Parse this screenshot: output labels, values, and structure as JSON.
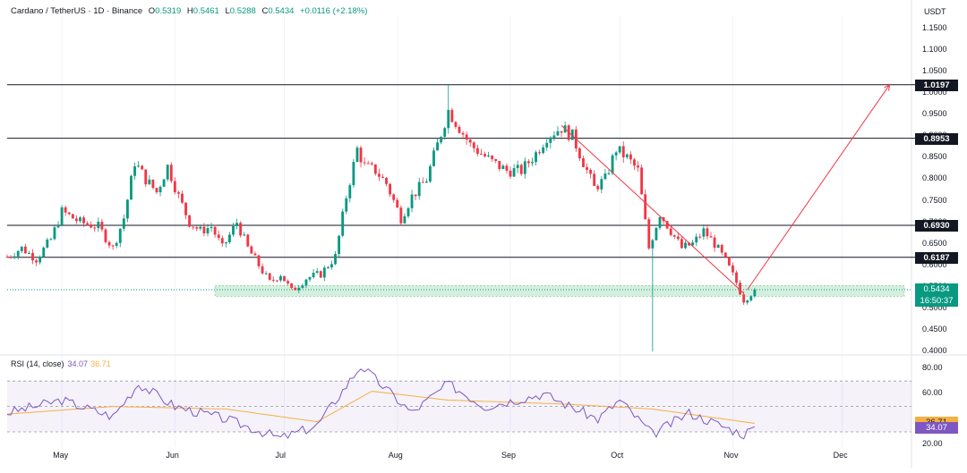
{
  "header": {
    "symbol": "Cardano / TetherUS · 1D · Binance",
    "o_label": "O",
    "o": "0.5319",
    "h_label": "H",
    "h": "0.5461",
    "l_label": "L",
    "l": "0.5288",
    "c_label": "C",
    "c": "0.5434",
    "change": "+0.0116 (+2.18%)"
  },
  "price_axis": {
    "unit": "USDT",
    "ticks": [
      "1.1500",
      "1.1000",
      "1.0500",
      "1.0000",
      "0.9500",
      "0.9000",
      "0.8500",
      "0.8000",
      "0.7500",
      "0.7000",
      "0.6500",
      "0.6000",
      "0.5500",
      "0.5000",
      "0.4500",
      "0.4000"
    ]
  },
  "rsi_axis": {
    "ticks": [
      "80.00",
      "60.00",
      "20.00"
    ]
  },
  "level_labels": [
    "1.0197",
    "0.8953",
    "0.6930",
    "0.6187"
  ],
  "price_tag": {
    "value": "0.5434",
    "countdown": "16:50:37"
  },
  "rsi_tags": {
    "ma": "36.71",
    "rsi": "34.07"
  },
  "rsi_header": {
    "label": "RSI (14, close)",
    "rsi": "34.07",
    "ma": "36.71"
  },
  "colors": {
    "up": "#089981",
    "down": "#f23645",
    "rsi": "#7e57c2",
    "rsi_ma": "#f5b041",
    "zone": "#b9e4c9",
    "arrow": "#f23645"
  },
  "chart_data": [
    {
      "type": "candlestick",
      "title": "Cardano / TetherUS · 1D · Binance",
      "x_ticks": [
        "May",
        "Jun",
        "Jul",
        "Aug",
        "Sep",
        "Oct",
        "Nov",
        "Dec"
      ],
      "ylim": [
        0.4,
        1.16
      ],
      "horizontal_levels": [
        1.0197,
        0.8953,
        0.693,
        0.6187
      ],
      "support_zone": [
        0.528,
        0.553
      ],
      "last_close": 0.5434,
      "trend_line": [
        {
          "x": "2024-09-15",
          "y": 0.925
        },
        {
          "x": "2024-11-04",
          "y": 0.535
        }
      ],
      "projection_arrow": [
        {
          "x": "2024-11-05",
          "y": 0.5434
        },
        {
          "x": "2024-12-14",
          "y": 1.0197
        }
      ],
      "close_waypoints": [
        {
          "x": "2024-04-16",
          "y": 0.62
        },
        {
          "x": "2024-04-20",
          "y": 0.64
        },
        {
          "x": "2024-04-24",
          "y": 0.615
        },
        {
          "x": "2024-04-28",
          "y": 0.66
        },
        {
          "x": "2024-05-01",
          "y": 0.725
        },
        {
          "x": "2024-05-06",
          "y": 0.7
        },
        {
          "x": "2024-05-11",
          "y": 0.69
        },
        {
          "x": "2024-05-15",
          "y": 0.64
        },
        {
          "x": "2024-05-18",
          "y": 0.71
        },
        {
          "x": "2024-05-21",
          "y": 0.84
        },
        {
          "x": "2024-05-24",
          "y": 0.8
        },
        {
          "x": "2024-05-27",
          "y": 0.77
        },
        {
          "x": "2024-05-30",
          "y": 0.83
        },
        {
          "x": "2024-06-02",
          "y": 0.76
        },
        {
          "x": "2024-06-05",
          "y": 0.7
        },
        {
          "x": "2024-06-08",
          "y": 0.68
        },
        {
          "x": "2024-06-11",
          "y": 0.69
        },
        {
          "x": "2024-06-14",
          "y": 0.64
        },
        {
          "x": "2024-06-18",
          "y": 0.7
        },
        {
          "x": "2024-06-21",
          "y": 0.64
        },
        {
          "x": "2024-06-24",
          "y": 0.6
        },
        {
          "x": "2024-06-27",
          "y": 0.56
        },
        {
          "x": "2024-06-30",
          "y": 0.58
        },
        {
          "x": "2024-07-03",
          "y": 0.54
        },
        {
          "x": "2024-07-07",
          "y": 0.57
        },
        {
          "x": "2024-07-11",
          "y": 0.58
        },
        {
          "x": "2024-07-15",
          "y": 0.62
        },
        {
          "x": "2024-07-18",
          "y": 0.76
        },
        {
          "x": "2024-07-21",
          "y": 0.87
        },
        {
          "x": "2024-07-23",
          "y": 0.83
        },
        {
          "x": "2024-07-26",
          "y": 0.82
        },
        {
          "x": "2024-07-29",
          "y": 0.79
        },
        {
          "x": "2024-08-02",
          "y": 0.71
        },
        {
          "x": "2024-08-05",
          "y": 0.76
        },
        {
          "x": "2024-08-09",
          "y": 0.8
        },
        {
          "x": "2024-08-12",
          "y": 0.88
        },
        {
          "x": "2024-08-15",
          "y": 0.96
        },
        {
          "x": "2024-08-18",
          "y": 0.92
        },
        {
          "x": "2024-08-21",
          "y": 0.88
        },
        {
          "x": "2024-08-24",
          "y": 0.86
        },
        {
          "x": "2024-08-27",
          "y": 0.84
        },
        {
          "x": "2024-08-31",
          "y": 0.82
        },
        {
          "x": "2024-09-04",
          "y": 0.82
        },
        {
          "x": "2024-09-08",
          "y": 0.86
        },
        {
          "x": "2024-09-11",
          "y": 0.9
        },
        {
          "x": "2024-09-15",
          "y": 0.92
        },
        {
          "x": "2024-09-18",
          "y": 0.9
        },
        {
          "x": "2024-09-21",
          "y": 0.84
        },
        {
          "x": "2024-09-24",
          "y": 0.78
        },
        {
          "x": "2024-09-27",
          "y": 0.8
        },
        {
          "x": "2024-09-30",
          "y": 0.87
        },
        {
          "x": "2024-10-03",
          "y": 0.85
        },
        {
          "x": "2024-10-06",
          "y": 0.82
        },
        {
          "x": "2024-10-09",
          "y": 0.64
        },
        {
          "x": "2024-10-12",
          "y": 0.72
        },
        {
          "x": "2024-10-15",
          "y": 0.68
        },
        {
          "x": "2024-10-18",
          "y": 0.64
        },
        {
          "x": "2024-10-21",
          "y": 0.65
        },
        {
          "x": "2024-10-24",
          "y": 0.68
        },
        {
          "x": "2024-10-27",
          "y": 0.65
        },
        {
          "x": "2024-10-30",
          "y": 0.61
        },
        {
          "x": "2024-11-02",
          "y": 0.56
        },
        {
          "x": "2024-11-04",
          "y": 0.52
        },
        {
          "x": "2024-11-07",
          "y": 0.543
        }
      ],
      "wick_extremes": [
        {
          "x": "2024-10-10",
          "low": 0.4
        },
        {
          "x": "2024-08-15",
          "high": 1.02
        }
      ]
    },
    {
      "type": "line",
      "title": "RSI (14, close)",
      "ylim": [
        20,
        85
      ],
      "bands": [
        70,
        50,
        30
      ],
      "series": [
        {
          "name": "RSI (14, close)",
          "values_at": [
            {
              "x": "2024-04-16",
              "y": 45
            },
            {
              "x": "2024-05-01",
              "y": 55
            },
            {
              "x": "2024-05-15",
              "y": 42
            },
            {
              "x": "2024-05-22",
              "y": 68
            },
            {
              "x": "2024-06-01",
              "y": 50
            },
            {
              "x": "2024-06-15",
              "y": 40
            },
            {
              "x": "2024-06-30",
              "y": 25
            },
            {
              "x": "2024-07-10",
              "y": 35
            },
            {
              "x": "2024-07-22",
              "y": 82
            },
            {
              "x": "2024-08-05",
              "y": 45
            },
            {
              "x": "2024-08-15",
              "y": 68
            },
            {
              "x": "2024-08-25",
              "y": 50
            },
            {
              "x": "2024-09-10",
              "y": 60
            },
            {
              "x": "2024-09-25",
              "y": 40
            },
            {
              "x": "2024-10-01",
              "y": 55
            },
            {
              "x": "2024-10-10",
              "y": 28
            },
            {
              "x": "2024-10-20",
              "y": 45
            },
            {
              "x": "2024-11-04",
              "y": 28
            },
            {
              "x": "2024-11-07",
              "y": 34.07
            }
          ]
        },
        {
          "name": "MA",
          "values_at": [
            {
              "x": "2024-04-16",
              "y": 44
            },
            {
              "x": "2024-05-15",
              "y": 50
            },
            {
              "x": "2024-06-15",
              "y": 48
            },
            {
              "x": "2024-07-10",
              "y": 38
            },
            {
              "x": "2024-07-25",
              "y": 62
            },
            {
              "x": "2024-08-15",
              "y": 55
            },
            {
              "x": "2024-09-15",
              "y": 52
            },
            {
              "x": "2024-10-10",
              "y": 48
            },
            {
              "x": "2024-11-07",
              "y": 36.71
            }
          ]
        }
      ]
    }
  ]
}
